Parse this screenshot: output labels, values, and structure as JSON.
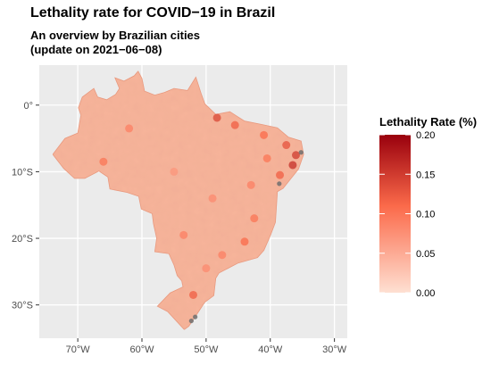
{
  "chart": {
    "title": "Lethality rate for COVID−19 in Brazil",
    "subtitle": "An overview by Brazilian cities",
    "update_note": "(update on 2021−06−08)"
  },
  "colors": {
    "panel_background": "#ebebeb",
    "grid": "#ffffff",
    "scale_low": "#fee0d2",
    "scale_high": "#99000d",
    "map_base": "#f6b49a",
    "map_border": "#e8967a",
    "missing": "#6e6e6e"
  },
  "chart_data": {
    "type": "heatmap",
    "subtype": "choropleth-map",
    "title": "Lethality rate for COVID−19 in Brazil",
    "subtitle": "An overview by Brazilian cities (update on 2021−06−08)",
    "x_axis": {
      "ticks": [
        -70,
        -60,
        -50,
        -40,
        -30
      ],
      "tick_labels": [
        "70°W",
        "60°W",
        "50°W",
        "40°W",
        "30°W"
      ],
      "range": [
        -76,
        -28
      ]
    },
    "y_axis": {
      "ticks": [
        0,
        -10,
        -20,
        -30
      ],
      "tick_labels": [
        "0°",
        "10°S",
        "20°S",
        "30°S"
      ],
      "range": [
        -35,
        6
      ]
    },
    "grid": true,
    "legend": {
      "title": "Lethality Rate (%)",
      "placement": "right",
      "min": 0.0,
      "max": 0.2,
      "ticks": [
        0.0,
        0.05,
        0.1,
        0.15,
        0.2
      ],
      "tick_labels": [
        "0.00",
        "0.05",
        "0.10",
        "0.15",
        "0.20"
      ],
      "low_color": "#fee0d2",
      "high_color": "#99000d"
    },
    "region": "Brazil (municipalities)"
  },
  "map": {
    "outline": [
      [
        -73.9,
        -7.4
      ],
      [
        -72.2,
        -9.5
      ],
      [
        -70.5,
        -11.0
      ],
      [
        -68.9,
        -11.0
      ],
      [
        -66.7,
        -9.9
      ],
      [
        -65.3,
        -10.8
      ],
      [
        -65.0,
        -12.6
      ],
      [
        -62.3,
        -13.1
      ],
      [
        -60.5,
        -13.7
      ],
      [
        -60.1,
        -15.6
      ],
      [
        -58.4,
        -16.3
      ],
      [
        -58.2,
        -17.8
      ],
      [
        -57.7,
        -20.0
      ],
      [
        -58.0,
        -22.0
      ],
      [
        -55.8,
        -22.3
      ],
      [
        -55.0,
        -24.0
      ],
      [
        -54.5,
        -25.6
      ],
      [
        -53.8,
        -26.4
      ],
      [
        -53.6,
        -27.3
      ],
      [
        -55.6,
        -28.2
      ],
      [
        -57.6,
        -30.2
      ],
      [
        -56.0,
        -31.0
      ],
      [
        -53.4,
        -33.7
      ],
      [
        -52.7,
        -33.2
      ],
      [
        -51.3,
        -31.2
      ],
      [
        -50.2,
        -29.6
      ],
      [
        -48.8,
        -28.6
      ],
      [
        -48.5,
        -26.0
      ],
      [
        -48.0,
        -25.2
      ],
      [
        -45.0,
        -23.7
      ],
      [
        -42.0,
        -22.9
      ],
      [
        -41.0,
        -21.8
      ],
      [
        -40.0,
        -19.6
      ],
      [
        -39.2,
        -17.6
      ],
      [
        -38.9,
        -13.0
      ],
      [
        -38.0,
        -12.5
      ],
      [
        -35.6,
        -9.6
      ],
      [
        -34.8,
        -7.4
      ],
      [
        -35.2,
        -5.4
      ],
      [
        -37.2,
        -4.8
      ],
      [
        -38.9,
        -3.4
      ],
      [
        -41.4,
        -2.9
      ],
      [
        -44.0,
        -2.4
      ],
      [
        -46.3,
        -1.0
      ],
      [
        -48.5,
        -1.4
      ],
      [
        -50.2,
        0.2
      ],
      [
        -50.8,
        1.8
      ],
      [
        -51.6,
        4.2
      ],
      [
        -52.9,
        2.2
      ],
      [
        -55.0,
        2.5
      ],
      [
        -56.5,
        1.9
      ],
      [
        -58.0,
        1.5
      ],
      [
        -59.6,
        2.1
      ],
      [
        -60.0,
        4.0
      ],
      [
        -60.6,
        5.1
      ],
      [
        -61.2,
        4.4
      ],
      [
        -62.8,
        3.6
      ],
      [
        -64.2,
        4.1
      ],
      [
        -63.5,
        2.5
      ],
      [
        -64.1,
        1.6
      ],
      [
        -65.5,
        0.8
      ],
      [
        -66.9,
        1.2
      ],
      [
        -67.5,
        2.5
      ],
      [
        -69.3,
        1.2
      ],
      [
        -69.9,
        -0.4
      ],
      [
        -69.5,
        -1.5
      ],
      [
        -70.0,
        -4.2
      ],
      [
        -72.0,
        -5.0
      ],
      [
        -73.9,
        -7.4
      ]
    ],
    "hotspots": [
      {
        "lon": -48.3,
        "lat": -1.9,
        "rate": 0.14
      },
      {
        "lon": -45.5,
        "lat": -3.0,
        "rate": 0.12
      },
      {
        "lon": -41.0,
        "lat": -4.5,
        "rate": 0.11
      },
      {
        "lon": -37.5,
        "lat": -6.0,
        "rate": 0.13
      },
      {
        "lon": -36.0,
        "lat": -7.5,
        "rate": 0.15
      },
      {
        "lon": -38.5,
        "lat": -10.5,
        "rate": 0.12
      },
      {
        "lon": -40.5,
        "lat": -8.0,
        "rate": 0.1
      },
      {
        "lon": -43.0,
        "lat": -12.0,
        "rate": 0.09
      },
      {
        "lon": -42.5,
        "lat": -17.0,
        "rate": 0.1
      },
      {
        "lon": -44.0,
        "lat": -20.5,
        "rate": 0.11
      },
      {
        "lon": -47.5,
        "lat": -22.5,
        "rate": 0.09
      },
      {
        "lon": -50.0,
        "lat": -24.5,
        "rate": 0.08
      },
      {
        "lon": -52.0,
        "lat": -28.5,
        "rate": 0.12
      },
      {
        "lon": -62.0,
        "lat": -3.5,
        "rate": 0.09
      },
      {
        "lon": -55.0,
        "lat": -10.0,
        "rate": 0.07
      },
      {
        "lon": -49.0,
        "lat": -14.0,
        "rate": 0.08
      },
      {
        "lon": -53.5,
        "lat": -19.5,
        "rate": 0.09
      },
      {
        "lon": -66.0,
        "lat": -8.5,
        "rate": 0.1
      },
      {
        "lon": -36.5,
        "lat": -9.0,
        "rate": 0.16
      }
    ],
    "missing_areas": [
      {
        "lon": -51.7,
        "lat": -31.8
      },
      {
        "lon": -52.3,
        "lat": -32.4
      },
      {
        "lon": -38.6,
        "lat": -11.8
      },
      {
        "lon": -35.2,
        "lat": -7.1
      }
    ]
  }
}
